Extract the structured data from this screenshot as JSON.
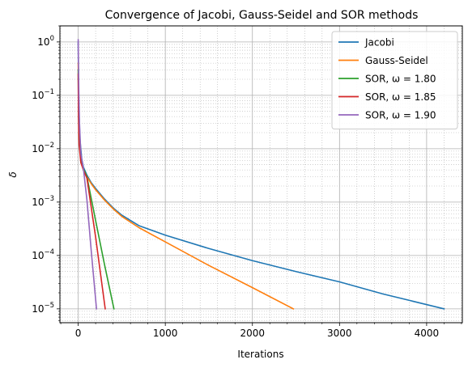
{
  "chart_data": {
    "type": "line",
    "title": "Convergence of Jacobi, Gauss-Seidel and SOR methods",
    "xlabel": "Iterations",
    "ylabel": "δ",
    "xscale": "linear",
    "yscale": "log",
    "xlim": [
      -210,
      4410
    ],
    "ylim": [
      5.5e-06,
      2.0
    ],
    "x_ticks": [
      {
        "value": 0,
        "label": "0"
      },
      {
        "value": 1000,
        "label": "1000"
      },
      {
        "value": 2000,
        "label": "2000"
      },
      {
        "value": 3000,
        "label": "3000"
      },
      {
        "value": 4000,
        "label": "4000"
      }
    ],
    "y_ticks": [
      {
        "exp": 0,
        "base": "10",
        "power": "0"
      },
      {
        "exp": -1,
        "base": "10",
        "power": "−1"
      },
      {
        "exp": -2,
        "base": "10",
        "power": "−2"
      },
      {
        "exp": -3,
        "base": "10",
        "power": "−3"
      },
      {
        "exp": -4,
        "base": "10",
        "power": "−4"
      },
      {
        "exp": -5,
        "base": "10",
        "power": "−5"
      }
    ],
    "grid": {
      "major": true,
      "minor": true
    },
    "legend_position": "top-right",
    "series": [
      {
        "name": "Jacobi",
        "color": "#1f77b4",
        "x": [
          0,
          2,
          5,
          10,
          20,
          40,
          60,
          100,
          150,
          200,
          300,
          400,
          500,
          700,
          1000,
          1500,
          2000,
          2500,
          3000,
          3500,
          4200
        ],
        "y": [
          1.0,
          0.3,
          0.1,
          0.04,
          0.015,
          0.0065,
          0.0045,
          0.0032,
          0.0023,
          0.0018,
          0.00115,
          0.00078,
          0.00057,
          0.00036,
          0.00024,
          0.000135,
          8e-05,
          5e-05,
          3.2e-05,
          1.9e-05,
          1e-05
        ]
      },
      {
        "name": "Gauss-Seidel",
        "color": "#ff7f0e",
        "x": [
          0,
          2,
          5,
          10,
          20,
          40,
          60,
          100,
          150,
          200,
          300,
          400,
          500,
          700,
          1000,
          1500,
          2000,
          2470
        ],
        "y": [
          0.4,
          0.15,
          0.06,
          0.025,
          0.01,
          0.005,
          0.004,
          0.003,
          0.0022,
          0.0017,
          0.0011,
          0.00075,
          0.00054,
          0.00033,
          0.00018,
          6.5e-05,
          2.5e-05,
          1e-05
        ]
      },
      {
        "name": "SOR, ω = 1.80",
        "color": "#2ca02c",
        "x": [
          0,
          3,
          10,
          30,
          60,
          100,
          200,
          300,
          410
        ],
        "y": [
          0.3,
          0.05,
          0.015,
          0.006,
          0.0042,
          0.003,
          0.00045,
          7e-05,
          1e-05
        ]
      },
      {
        "name": "SOR, ω = 1.85",
        "color": "#d62728",
        "x": [
          0,
          3,
          10,
          30,
          60,
          100,
          200,
          310
        ],
        "y": [
          0.25,
          0.04,
          0.012,
          0.0055,
          0.004,
          0.0028,
          0.00022,
          1e-05
        ]
      },
      {
        "name": "SOR, ω = 1.90",
        "color": "#9467bd",
        "x": [
          0,
          3,
          8,
          15,
          30,
          60,
          100,
          150,
          210
        ],
        "y": [
          1.1,
          0.4,
          0.1,
          0.03,
          0.008,
          0.0042,
          0.0011,
          0.00012,
          1e-05
        ]
      }
    ]
  }
}
